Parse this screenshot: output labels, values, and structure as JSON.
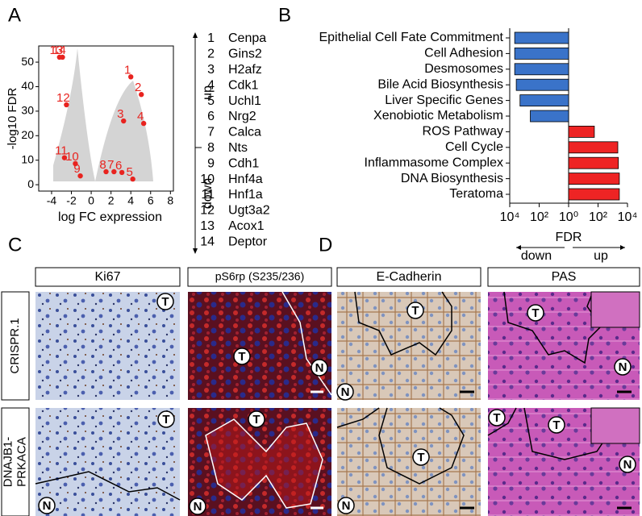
{
  "panel_letters": [
    "A",
    "B",
    "C",
    "D"
  ],
  "chart_data": [
    {
      "type": "scatter",
      "x_label": "log FC expression",
      "y_label": "-log10 FDR",
      "color": "#e8231f",
      "x": [
        4.0,
        5.06,
        3.27,
        5.3,
        4.2,
        3.1,
        2.3,
        1.5,
        -1.1,
        -1.6,
        -2.7,
        -2.5,
        -3.2,
        -2.9
      ],
      "values": [
        44,
        36.8,
        26,
        25,
        2.3,
        5,
        5.3,
        5.3,
        3.6,
        8.6,
        11,
        32.6,
        52,
        52
      ],
      "labels": [
        "1",
        "2",
        "3",
        "4",
        "5",
        "6",
        "7",
        "8",
        "9",
        "10",
        "11",
        "12",
        "13",
        "14"
      ],
      "xlim": [
        -5.3,
        8.3
      ],
      "ylim": [
        -2.6,
        56.6
      ],
      "xticks": [
        -4,
        -2,
        0,
        2,
        4,
        6,
        8
      ],
      "yticks": [
        0,
        10,
        20,
        30,
        40,
        50
      ]
    },
    {
      "type": "hbar",
      "x_label": "FDR",
      "direction_labels": [
        "down",
        "up"
      ],
      "categories": [
        "Epithelial Cell Fate Commitment",
        "Cell Adhesion",
        "Desmosomes",
        "Bile Acid Biosynthesis",
        "Liver Specific Genes",
        "Xenobiotic Metabolism",
        "ROS Pathway",
        "Cell Cycle",
        "Inflammasome Complex",
        "DNA Biosynthesis",
        "Teratoma"
      ],
      "series": [
        {
          "color": "#3a73c9",
          "values": [
            -4600,
            -4600,
            -4600,
            -3600,
            -2000,
            -400,
            null,
            null,
            null,
            null,
            null
          ]
        },
        {
          "color": "#ee2424",
          "values": [
            null,
            null,
            null,
            null,
            null,
            null,
            56,
            2200,
            2400,
            2800,
            2800
          ]
        }
      ],
      "log_scale": true,
      "xlim": [
        -10000,
        10000
      ],
      "xticks": [
        {
          "value": -10000,
          "label": "10⁴"
        },
        {
          "value": -100,
          "label": "10²"
        },
        {
          "value": 1,
          "label": "10⁰"
        },
        {
          "value": 100,
          "label": "10²"
        },
        {
          "value": 10000,
          "label": "10⁴"
        }
      ]
    }
  ],
  "genes": {
    "up_label": "up",
    "down_label": "down",
    "names": [
      "Cenpa",
      "Gins2",
      "H2afz",
      "Cdk1",
      "Uchl1",
      "Nrg2",
      "Calca",
      "Nts",
      "Cdh1",
      "Hnf4a",
      "Hnf1a",
      "Ugt3a2",
      "Acox1",
      "Deptor"
    ]
  },
  "micrographs": {
    "columns": [
      "Ki67",
      "pS6rp (S235/236)",
      "E-Cadherin",
      "PAS"
    ],
    "rows": [
      [
        "CRISPR.1"
      ],
      [
        "DNAJB1-",
        "PRKACA"
      ]
    ],
    "markers": {
      "tumor": "T",
      "normal": "N"
    }
  }
}
